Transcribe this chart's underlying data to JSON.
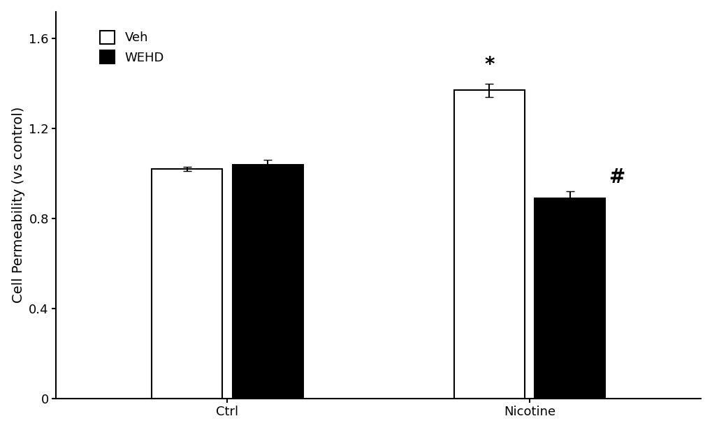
{
  "groups": [
    "Ctrl",
    "Nicotine"
  ],
  "veh_values": [
    1.02,
    1.37
  ],
  "wehd_values": [
    1.04,
    0.89
  ],
  "veh_sem": [
    0.01,
    0.03
  ],
  "wehd_sem": [
    0.02,
    0.03
  ],
  "veh_color": "#ffffff",
  "wehd_color": "#000000",
  "bar_edge_color": "#000000",
  "ylim": [
    0,
    1.72
  ],
  "yticks": [
    0,
    0.4,
    0.8,
    1.2,
    1.6
  ],
  "ylabel": "Cell Permeability (vs control)",
  "legend_veh": "Veh",
  "legend_wehd": "WEHD",
  "bar_width": 0.35,
  "group_centers": [
    1.0,
    2.5
  ],
  "annotation_nicotine_veh": "*",
  "annotation_nicotine_wehd": "#",
  "annotation_fontsize": 20,
  "label_fontsize": 14,
  "tick_fontsize": 13,
  "legend_fontsize": 13,
  "linewidth": 1.5,
  "capsize": 4,
  "elinewidth": 1.5
}
